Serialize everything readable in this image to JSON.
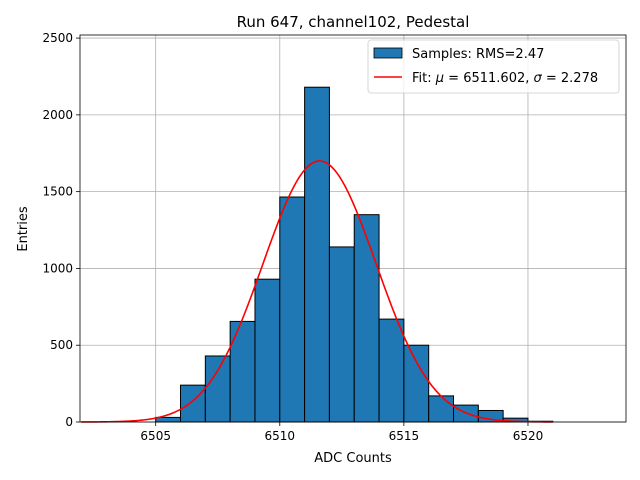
{
  "chart_data": {
    "type": "bar",
    "title": "Run 647, channel102, Pedestal",
    "xlabel": "ADC Counts",
    "ylabel": "Entries",
    "xlim": [
      6501.95,
      6523.95
    ],
    "ylim": [
      0,
      2520
    ],
    "x_ticks": [
      6505,
      6510,
      6515,
      6520
    ],
    "y_ticks": [
      0,
      500,
      1000,
      1500,
      2000,
      2500
    ],
    "grid": true,
    "legend_position": "top-right",
    "bar_color": "#1f77b4",
    "fit_color": "#ff0000",
    "series": [
      {
        "name": "Samples: RMS=2.47",
        "type": "histogram",
        "bin_width": 1,
        "bins": [
          {
            "left": 6505,
            "right": 6506,
            "count": 30
          },
          {
            "left": 6506,
            "right": 6507,
            "count": 240
          },
          {
            "left": 6507,
            "right": 6508,
            "count": 430
          },
          {
            "left": 6508,
            "right": 6509,
            "count": 655
          },
          {
            "left": 6509,
            "right": 6510,
            "count": 930
          },
          {
            "left": 6510,
            "right": 6511,
            "count": 1465
          },
          {
            "left": 6511,
            "right": 6512,
            "count": 2180
          },
          {
            "left": 6512,
            "right": 6513,
            "count": 1140
          },
          {
            "left": 6513,
            "right": 6514,
            "count": 1350
          },
          {
            "left": 6514,
            "right": 6515,
            "count": 670
          },
          {
            "left": 6515,
            "right": 6516,
            "count": 500
          },
          {
            "left": 6516,
            "right": 6517,
            "count": 170
          },
          {
            "left": 6517,
            "right": 6518,
            "count": 110
          },
          {
            "left": 6518,
            "right": 6519,
            "count": 75
          },
          {
            "left": 6519,
            "right": 6520,
            "count": 25
          },
          {
            "left": 6520,
            "right": 6521,
            "count": 5
          }
        ]
      },
      {
        "name_prefix": "Fit: ",
        "name_mu": "μ",
        "name_mid": " = 6511.602, ",
        "name_sigma": "σ",
        "name_suffix": " = 2.278",
        "type": "gaussian",
        "mu": 6511.602,
        "sigma": 2.278,
        "amplitude": 1700,
        "x_range": [
          6502,
          6521
        ]
      }
    ]
  }
}
